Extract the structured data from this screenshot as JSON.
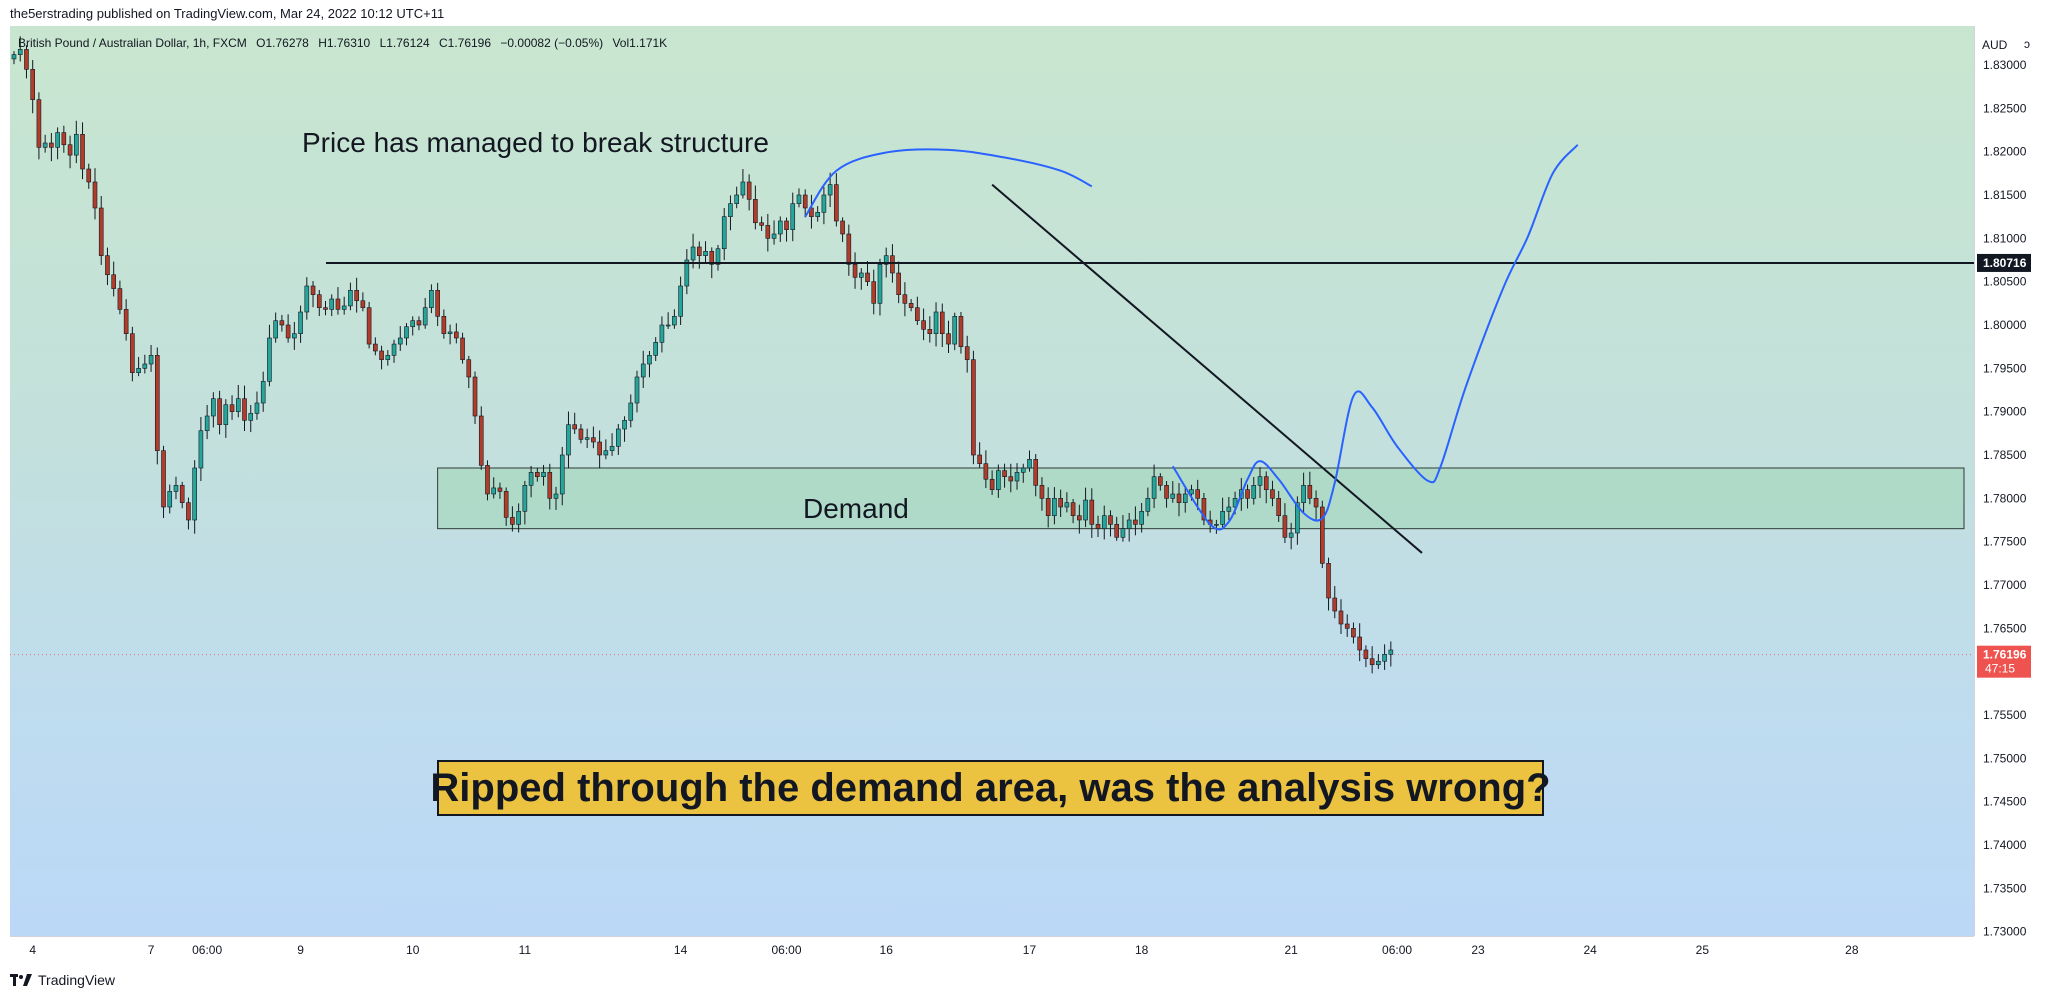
{
  "header": {
    "publisher_line": "the5erstrading published on TradingView.com, Mar 24, 2022 10:12 UTC+11"
  },
  "legend": {
    "symbol": "British Pound / Australian Dollar, 1h, FXCM",
    "open": "O1.76278",
    "high": "H1.76310",
    "low": "L1.76124",
    "close": "C1.76196",
    "change": "−0.00082 (−0.05%)",
    "volume": "Vol1.171K"
  },
  "currency_label": "AUD",
  "footer": {
    "brand": "TradingView"
  },
  "annotations": {
    "structure_note": "Price has managed to break structure",
    "demand_label": "Demand",
    "callout": "Ripped through the demand area, was the analysis wrong?"
  },
  "price_tags": {
    "level": "1.80716",
    "last_price": "1.76196",
    "countdown": "47:15"
  },
  "colors": {
    "up_candle": "#26a69a",
    "down_candle": "#b23c2a",
    "wick": "#131722",
    "bg_top": "#c8e6cf",
    "bg_bottom": "#bbd8f7",
    "demand_zone": "#a8d8c0",
    "scenario_line": "#2962ff",
    "trendline": "#131722",
    "level_line": "#131722",
    "last_price": "#ef5350",
    "callout_bg": "#ecc341"
  },
  "chart_data": {
    "type": "candlestick",
    "title": "British Pound / Australian Dollar, 1h, FXCM",
    "y_range": [
      1.7295,
      1.8345
    ],
    "y_ticks": [
      "1.83000",
      "1.82500",
      "1.82000",
      "1.81500",
      "1.81000",
      "1.80500",
      "1.80000",
      "1.79500",
      "1.79000",
      "1.78500",
      "1.78000",
      "1.77500",
      "1.77000",
      "1.76500",
      "1.76000",
      "1.75500",
      "1.75000",
      "1.74500",
      "1.74000",
      "1.73500",
      "1.73000"
    ],
    "x_ticks": [
      {
        "label": "4",
        "i": 3
      },
      {
        "label": "7",
        "i": 22
      },
      {
        "label": "06:00",
        "i": 31
      },
      {
        "label": "9",
        "i": 46
      },
      {
        "label": "10",
        "i": 64
      },
      {
        "label": "11",
        "i": 82
      },
      {
        "label": "14",
        "i": 107
      },
      {
        "label": "06:00",
        "i": 124
      },
      {
        "label": "16",
        "i": 140
      },
      {
        "label": "17",
        "i": 163
      },
      {
        "label": "18",
        "i": 181
      },
      {
        "label": "21",
        "i": 205
      },
      {
        "label": "06:00",
        "i": 222
      },
      {
        "label": "23",
        "i": 235
      },
      {
        "label": "24",
        "i": 253
      },
      {
        "label": "25",
        "i": 271
      },
      {
        "label": "28",
        "i": 295
      }
    ],
    "levels": [
      {
        "name": "broken structure",
        "price": 1.80716
      }
    ],
    "zones": [
      {
        "name": "Demand",
        "from_i": 68,
        "to_i": 313,
        "top": 1.7835,
        "bottom": 1.7765
      }
    ],
    "trendline": {
      "from": {
        "i": 157,
        "price": 1.8162
      },
      "to": {
        "i": 226,
        "price": 1.7737
      }
    },
    "scenario_path": [
      {
        "i": 127,
        "price": 1.8125
      },
      {
        "i": 132,
        "price": 1.8178
      },
      {
        "i": 140,
        "price": 1.8199
      },
      {
        "i": 150,
        "price": 1.8202
      },
      {
        "i": 160,
        "price": 1.8192
      },
      {
        "i": 168,
        "price": 1.8178
      },
      {
        "i": 173,
        "price": 1.816
      }
    ],
    "projection_path": [
      {
        "i": 186,
        "price": 1.7837
      },
      {
        "i": 192,
        "price": 1.777
      },
      {
        "i": 195,
        "price": 1.7773
      },
      {
        "i": 198,
        "price": 1.7822
      },
      {
        "i": 200,
        "price": 1.7843
      },
      {
        "i": 203,
        "price": 1.7822
      },
      {
        "i": 207,
        "price": 1.7783
      },
      {
        "i": 210,
        "price": 1.7777
      },
      {
        "i": 212,
        "price": 1.7818
      },
      {
        "i": 215,
        "price": 1.7918
      },
      {
        "i": 218,
        "price": 1.7905
      },
      {
        "i": 222,
        "price": 1.786
      },
      {
        "i": 227,
        "price": 1.782
      },
      {
        "i": 229,
        "price": 1.7837
      },
      {
        "i": 233,
        "price": 1.7928
      },
      {
        "i": 239,
        "price": 1.8042
      },
      {
        "i": 243,
        "price": 1.8102
      },
      {
        "i": 247,
        "price": 1.8175
      },
      {
        "i": 251,
        "price": 1.8208
      }
    ],
    "closes": [
      1.8312,
      1.8318,
      1.8295,
      1.826,
      1.8205,
      1.821,
      1.8205,
      1.8222,
      1.8208,
      1.8196,
      1.822,
      1.818,
      1.8165,
      1.8135,
      1.808,
      1.8058,
      1.8042,
      1.8018,
      1.799,
      1.7945,
      1.795,
      1.7955,
      1.7965,
      1.7855,
      1.779,
      1.7808,
      1.7815,
      1.7795,
      1.7775,
      1.7835,
      1.7878,
      1.7895,
      1.7915,
      1.7885,
      1.7908,
      1.79,
      1.7915,
      1.789,
      1.7898,
      1.791,
      1.7935,
      1.7985,
      1.8005,
      1.8,
      1.7985,
      1.799,
      1.8015,
      1.8045,
      1.8035,
      1.802,
      1.8018,
      1.803,
      1.8018,
      1.8022,
      1.804,
      1.8028,
      1.802,
      1.7978,
      1.797,
      1.796,
      1.7965,
      1.7978,
      1.7985,
      1.7998,
      1.8005,
      1.8,
      1.802,
      1.804,
      1.801,
      1.799,
      1.7992,
      1.7985,
      1.796,
      1.794,
      1.7895,
      1.7838,
      1.7805,
      1.7812,
      1.7808,
      1.7778,
      1.777,
      1.7785,
      1.7815,
      1.783,
      1.7825,
      1.783,
      1.78,
      1.7805,
      1.785,
      1.7885,
      1.788,
      1.7868,
      1.787,
      1.7865,
      1.785,
      1.7855,
      1.786,
      1.788,
      1.789,
      1.791,
      1.794,
      1.7955,
      1.7965,
      1.798,
      1.8,
      1.8,
      1.801,
      1.8045,
      1.8075,
      1.809,
      1.808,
      1.8085,
      1.807,
      1.8088,
      1.8125,
      1.814,
      1.815,
      1.8165,
      1.8145,
      1.8118,
      1.8115,
      1.81,
      1.8105,
      1.812,
      1.811,
      1.814,
      1.815,
      1.8135,
      1.8125,
      1.813,
      1.815,
      1.8162,
      1.812,
      1.8105,
      1.807,
      1.8055,
      1.806,
      1.805,
      1.8025,
      1.807,
      1.808,
      1.806,
      1.8035,
      1.8025,
      1.802,
      1.8005,
      1.7995,
      1.799,
      1.8015,
      1.799,
      1.7978,
      1.801,
      1.7975,
      1.796,
      1.785,
      1.784,
      1.7822,
      1.781,
      1.7832,
      1.7825,
      1.782,
      1.783,
      1.7835,
      1.7845,
      1.7815,
      1.78,
      1.778,
      1.78,
      1.779,
      1.7795,
      1.778,
      1.7775,
      1.7798,
      1.777,
      1.7765,
      1.778,
      1.777,
      1.7755,
      1.7765,
      1.7775,
      1.777,
      1.7785,
      1.78,
      1.7825,
      1.7815,
      1.78,
      1.7805,
      1.7795,
      1.7805,
      1.781,
      1.78,
      1.7775,
      1.777,
      1.777,
      1.7785,
      1.779,
      1.78,
      1.781,
      1.78,
      1.7815,
      1.7825,
      1.781,
      1.78,
      1.778,
      1.7755,
      1.776,
      1.7795,
      1.7815,
      1.78,
      1.779,
      1.7725,
      1.7685,
      1.767,
      1.7655,
      1.765,
      1.764,
      1.7625,
      1.7615,
      1.7608,
      1.7612,
      1.762,
      1.7625
    ]
  }
}
